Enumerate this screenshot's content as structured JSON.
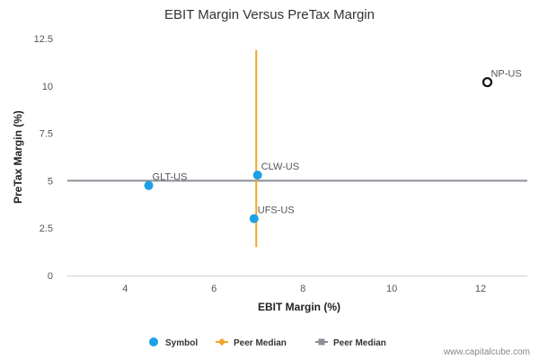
{
  "chart_data": {
    "type": "scatter",
    "title": "EBIT Margin Versus PreTax Margin",
    "xlabel": "EBIT Margin (%)",
    "ylabel": "PreTax Margin (%)",
    "xlim": [
      2.7,
      13.05
    ],
    "ylim": [
      0,
      12.5
    ],
    "x_ticks": [
      4,
      6,
      8,
      10,
      12
    ],
    "y_ticks": [
      0,
      2.5,
      5,
      7.5,
      10,
      12.5
    ],
    "x_tick_labels": [
      "4",
      "6",
      "8",
      "10",
      "12"
    ],
    "y_tick_labels": [
      "0",
      "2.5",
      "5",
      "7.5",
      "10",
      "12.5"
    ],
    "grid": false,
    "points": [
      {
        "label": "GLT-US",
        "x": 4.53,
        "y": 4.75,
        "style": "filled",
        "color": "#1da1e6"
      },
      {
        "label": "CLW-US",
        "x": 6.98,
        "y": 5.3,
        "style": "filled",
        "color": "#1da1e6"
      },
      {
        "label": "UFS-US",
        "x": 6.9,
        "y": 3.0,
        "style": "filled",
        "color": "#1da1e6"
      },
      {
        "label": "NP-US",
        "x": 12.15,
        "y": 10.2,
        "style": "open",
        "color": "#111111"
      }
    ],
    "peer_median_x": {
      "value": 6.95,
      "y_range": [
        1.5,
        11.9
      ],
      "color": "#f0a62a"
    },
    "peer_median_y": {
      "value": 5.0,
      "color": "#8a8f98"
    },
    "legend": {
      "placement": "bottom",
      "items": [
        {
          "label": "Symbol",
          "marker": "circle",
          "color": "#1da1e6"
        },
        {
          "label": "Peer Median",
          "marker": "line-diamond",
          "color": "#f0a62a"
        },
        {
          "label": "Peer Median",
          "marker": "line-square",
          "color": "#8a8f98"
        }
      ]
    }
  },
  "credit": "www.capitalcube.com"
}
